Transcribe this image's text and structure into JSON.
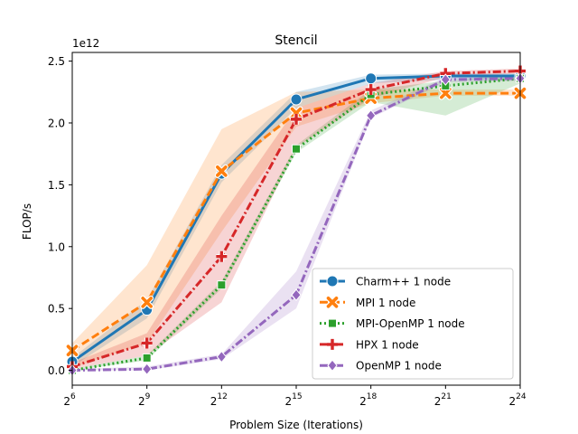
{
  "chart_data": {
    "type": "line",
    "title": "Stencil",
    "xlabel": "Problem Size (Iterations)",
    "ylabel": "FLOP/s",
    "y_scale_label": "1e12",
    "x_scale": "log2",
    "x_ticks": [
      {
        "base": "2",
        "exp": "6",
        "value": 6
      },
      {
        "base": "2",
        "exp": "9",
        "value": 9
      },
      {
        "base": "2",
        "exp": "12",
        "value": 12
      },
      {
        "base": "2",
        "exp": "15",
        "value": 15
      },
      {
        "base": "2",
        "exp": "18",
        "value": 18
      },
      {
        "base": "2",
        "exp": "21",
        "value": 21
      },
      {
        "base": "2",
        "exp": "24",
        "value": 24
      }
    ],
    "y_ticks": [
      {
        "label": "0.0",
        "value": 0.0
      },
      {
        "label": "0.5",
        "value": 0.5
      },
      {
        "label": "1.0",
        "value": 1.0
      },
      {
        "label": "1.5",
        "value": 1.5
      },
      {
        "label": "2.0",
        "value": 2.0
      },
      {
        "label": "2.5",
        "value": 2.5
      }
    ],
    "xlim": [
      6,
      24
    ],
    "ylim": [
      -0.12,
      2.57
    ],
    "grid": false,
    "legend_position": "lower right",
    "x": [
      6,
      9,
      12,
      15,
      18,
      21,
      24
    ],
    "series": [
      {
        "name": "Charm++ 1 node",
        "color": "#1f77b4",
        "dash": "solid",
        "marker": "circle",
        "values": [
          0.07,
          0.49,
          1.59,
          2.19,
          2.36,
          2.38,
          2.38
        ],
        "lower": [
          0.03,
          0.42,
          1.52,
          2.12,
          2.32,
          2.35,
          2.35
        ],
        "upper": [
          0.1,
          0.57,
          1.66,
          2.25,
          2.39,
          2.4,
          2.4
        ]
      },
      {
        "name": "MPI 1 node",
        "color": "#ff7f0e",
        "dash": "dashed",
        "marker": "x",
        "values": [
          0.16,
          0.55,
          1.61,
          2.08,
          2.2,
          2.24,
          2.24
        ],
        "lower": [
          0.02,
          0.22,
          1.12,
          1.97,
          2.16,
          2.22,
          2.22
        ],
        "upper": [
          0.22,
          0.85,
          1.95,
          2.25,
          2.27,
          2.27,
          2.27
        ]
      },
      {
        "name": "MPI-OpenMP 1 node",
        "color": "#2ca02c",
        "dash": "dotted",
        "marker": "square",
        "values": [
          0.0,
          0.1,
          0.69,
          1.79,
          2.23,
          2.3,
          2.36
        ],
        "lower": [
          0.0,
          0.08,
          0.66,
          1.76,
          2.17,
          2.06,
          2.32
        ],
        "upper": [
          0.01,
          0.12,
          0.72,
          1.82,
          2.27,
          2.34,
          2.4
        ]
      },
      {
        "name": "HPX 1 node",
        "color": "#d62728",
        "dash": "dashdot",
        "marker": "plus",
        "values": [
          0.03,
          0.22,
          0.92,
          2.03,
          2.27,
          2.4,
          2.42
        ],
        "lower": [
          0.01,
          0.12,
          0.55,
          1.8,
          2.2,
          2.37,
          2.4
        ],
        "upper": [
          0.06,
          0.3,
          1.25,
          2.12,
          2.32,
          2.42,
          2.44
        ]
      },
      {
        "name": "OpenMP 1 node",
        "color": "#9467bd",
        "dash": "dashdot",
        "marker": "diamond",
        "values": [
          0.0,
          0.01,
          0.11,
          0.61,
          2.06,
          2.35,
          2.36
        ],
        "lower": [
          0.0,
          0.0,
          0.09,
          0.5,
          2.04,
          2.33,
          2.34
        ],
        "upper": [
          0.01,
          0.03,
          0.13,
          0.8,
          2.1,
          2.37,
          2.38
        ]
      }
    ]
  }
}
